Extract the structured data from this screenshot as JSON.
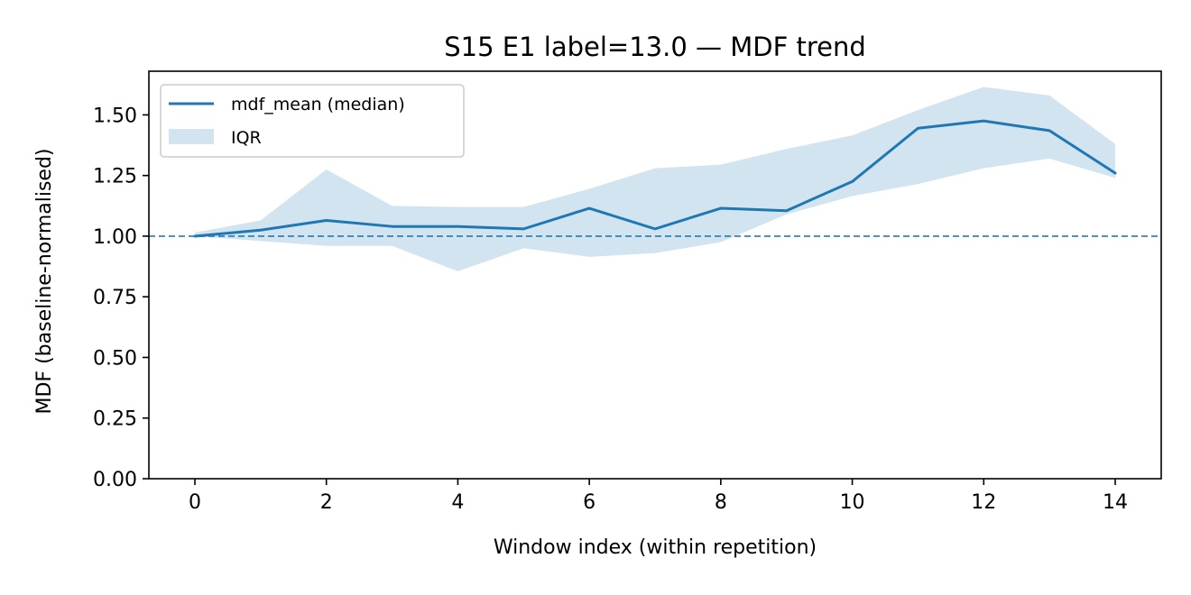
{
  "chart_data": {
    "type": "line",
    "title": "S15 E1 label=13.0 — MDF trend",
    "xlabel": "Window index (within repetition)",
    "ylabel": "MDF (baseline-normalised)",
    "xlim": [
      -0.7,
      14.7
    ],
    "ylim": [
      0.0,
      1.68
    ],
    "x_ticks": [
      0,
      2,
      4,
      6,
      8,
      10,
      12,
      14
    ],
    "x_tick_labels": [
      "0",
      "2",
      "4",
      "6",
      "8",
      "10",
      "12",
      "14"
    ],
    "y_ticks": [
      0.0,
      0.25,
      0.5,
      0.75,
      1.0,
      1.25,
      1.5
    ],
    "y_tick_labels": [
      "0.00",
      "0.25",
      "0.50",
      "0.75",
      "1.00",
      "1.25",
      "1.50"
    ],
    "grid": false,
    "legend_position": "upper-left",
    "x": [
      0,
      1,
      2,
      3,
      4,
      5,
      6,
      7,
      8,
      9,
      10,
      11,
      12,
      13,
      14
    ],
    "series": [
      {
        "name": "mdf_mean (median)",
        "kind": "line",
        "color": "#1f77b4",
        "values": [
          1.0,
          1.025,
          1.065,
          1.04,
          1.04,
          1.03,
          1.115,
          1.03,
          1.115,
          1.105,
          1.225,
          1.445,
          1.475,
          1.435,
          1.26
        ]
      },
      {
        "name": "IQR",
        "kind": "band",
        "color": "#1f77b4",
        "opacity": 0.2,
        "lower": [
          1.0,
          0.98,
          0.96,
          0.96,
          0.855,
          0.95,
          0.915,
          0.93,
          0.975,
          1.09,
          1.165,
          1.215,
          1.28,
          1.32,
          1.24
        ],
        "upper": [
          1.015,
          1.065,
          1.275,
          1.125,
          1.12,
          1.12,
          1.195,
          1.28,
          1.295,
          1.36,
          1.415,
          1.52,
          1.615,
          1.58,
          1.38
        ]
      }
    ],
    "reference_lines": [
      {
        "y": 1.0,
        "style": "dashed",
        "color": "#1f77b4"
      }
    ]
  }
}
